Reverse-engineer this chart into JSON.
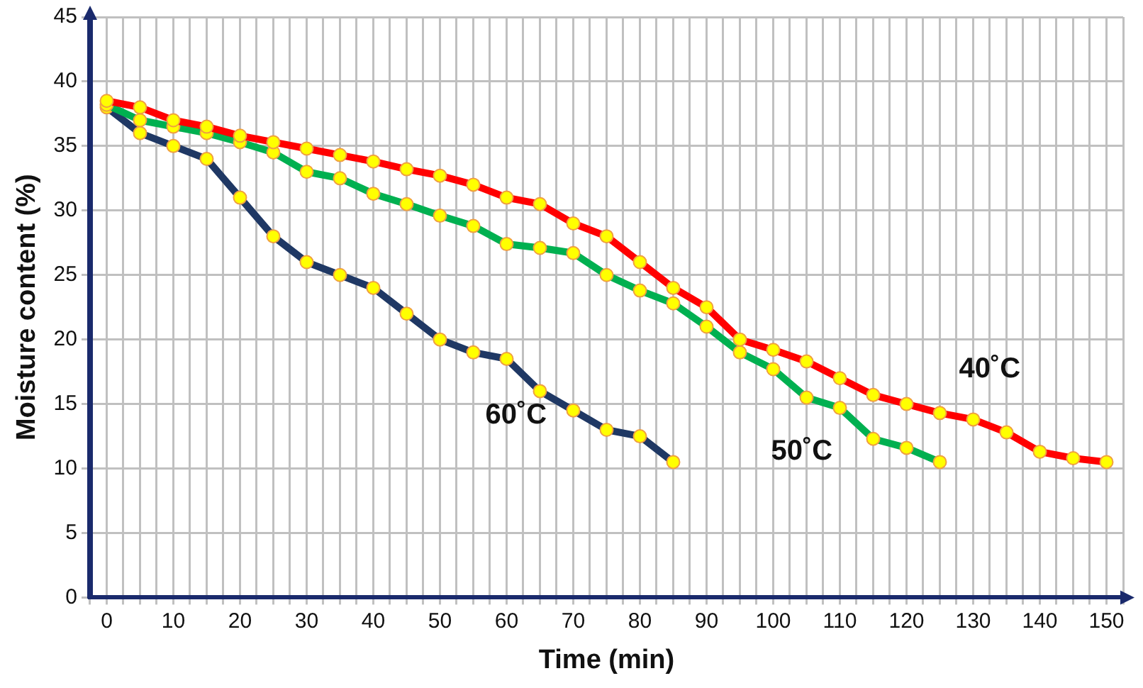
{
  "chart_data": {
    "type": "line",
    "xlabel": "Time (min)",
    "ylabel": "Moisture content (%)",
    "xlim": [
      -2.5,
      152.5
    ],
    "ylim": [
      0,
      45
    ],
    "xticks": [
      {
        "value": -2.5,
        "label": null
      },
      0,
      {
        "value": 2.5,
        "label": null
      },
      {
        "value": 5,
        "label": null
      },
      {
        "value": 7.5,
        "label": null
      },
      10,
      {
        "value": 12.5,
        "label": null
      },
      {
        "value": 15,
        "label": null
      },
      {
        "value": 17.5,
        "label": null
      },
      20,
      {
        "value": 22.5,
        "label": null
      },
      {
        "value": 25,
        "label": null
      },
      {
        "value": 27.5,
        "label": null
      },
      30,
      {
        "value": 32.5,
        "label": null
      },
      {
        "value": 35,
        "label": null
      },
      {
        "value": 37.5,
        "label": null
      },
      40,
      {
        "value": 42.5,
        "label": null
      },
      {
        "value": 45,
        "label": null
      },
      {
        "value": 47.5,
        "label": null
      },
      50,
      {
        "value": 52.5,
        "label": null
      },
      {
        "value": 55,
        "label": null
      },
      {
        "value": 57.5,
        "label": null
      },
      60,
      {
        "value": 62.5,
        "label": null
      },
      {
        "value": 65,
        "label": null
      },
      {
        "value": 67.5,
        "label": null
      },
      70,
      {
        "value": 72.5,
        "label": null
      },
      {
        "value": 75,
        "label": null
      },
      {
        "value": 77.5,
        "label": null
      },
      80,
      {
        "value": 82.5,
        "label": null
      },
      {
        "value": 85,
        "label": null
      },
      {
        "value": 87.5,
        "label": null
      },
      90,
      {
        "value": 92.5,
        "label": null
      },
      {
        "value": 95,
        "label": null
      },
      {
        "value": 97.5,
        "label": null
      },
      100,
      {
        "value": 102.5,
        "label": null
      },
      {
        "value": 105,
        "label": null
      },
      {
        "value": 107.5,
        "label": null
      },
      110,
      {
        "value": 112.5,
        "label": null
      },
      {
        "value": 115,
        "label": null
      },
      {
        "value": 117.5,
        "label": null
      },
      120,
      {
        "value": 122.5,
        "label": null
      },
      {
        "value": 125,
        "label": null
      },
      {
        "value": 127.5,
        "label": null
      },
      130,
      {
        "value": 132.5,
        "label": null
      },
      {
        "value": 135,
        "label": null
      },
      {
        "value": 137.5,
        "label": null
      },
      140,
      {
        "value": 142.5,
        "label": null
      },
      {
        "value": 145,
        "label": null
      },
      {
        "value": 147.5,
        "label": null
      },
      150,
      {
        "value": 152.5,
        "label": null
      }
    ],
    "yticks": [
      0,
      5,
      10,
      15,
      20,
      25,
      30,
      35,
      40,
      45
    ],
    "grid": true,
    "legend": false,
    "marker": "circle",
    "line_style": "solid",
    "series": [
      {
        "name": "40˚C",
        "color": "#ff0000",
        "x": [
          0,
          5,
          10,
          15,
          20,
          25,
          30,
          35,
          40,
          45,
          50,
          55,
          60,
          65,
          70,
          75,
          80,
          85,
          90,
          95,
          100,
          105,
          110,
          115,
          120,
          125,
          130,
          135,
          140,
          145,
          150
        ],
        "values": [
          38.5,
          38,
          37,
          36.5,
          35.8,
          35.3,
          34.8,
          34.3,
          33.8,
          33.2,
          32.7,
          32,
          31,
          30.5,
          29,
          28,
          26,
          24,
          22.5,
          20,
          19.2,
          18.3,
          17,
          15.7,
          15,
          14.3,
          13.8,
          12.8,
          11.3,
          10.8,
          10.5
        ]
      },
      {
        "name": "50˚C",
        "color": "#00b050",
        "x": [
          0,
          5,
          10,
          15,
          20,
          25,
          30,
          35,
          40,
          45,
          50,
          55,
          60,
          65,
          70,
          75,
          80,
          85,
          90,
          95,
          100,
          105,
          110,
          115,
          120,
          125
        ],
        "values": [
          38.2,
          37,
          36.5,
          36,
          35.3,
          34.5,
          33,
          32.5,
          31.3,
          30.5,
          29.6,
          28.8,
          27.4,
          27.1,
          26.7,
          25,
          23.8,
          22.8,
          21,
          19,
          17.7,
          15.5,
          14.7,
          12.3,
          11.6,
          10.5
        ]
      },
      {
        "name": "60˚C",
        "color": "#1f3864",
        "x": [
          0,
          5,
          10,
          15,
          20,
          25,
          30,
          35,
          40,
          45,
          50,
          55,
          60,
          65,
          70,
          75,
          80,
          85
        ],
        "values": [
          38,
          36,
          35,
          34,
          31,
          28,
          26,
          25,
          24,
          22,
          20,
          19,
          18.5,
          16,
          14.5,
          13,
          12.5,
          10.5
        ]
      }
    ]
  }
}
